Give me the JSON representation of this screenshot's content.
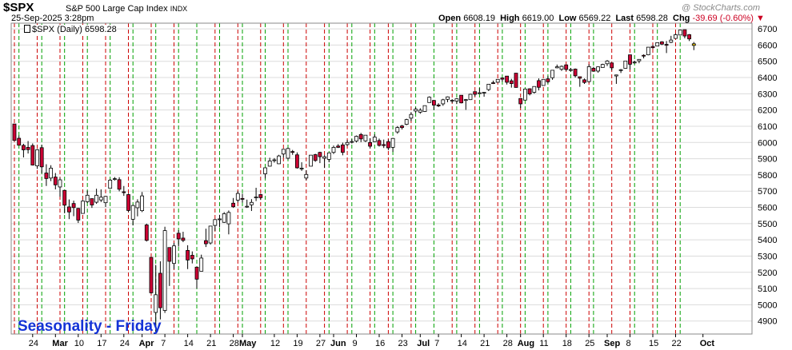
{
  "header": {
    "symbol": "$SPX",
    "index_name": "S&P 500 Large Cap Index",
    "index_suffix": "INDX",
    "datetime": "25-Sep-2025 3:28pm",
    "watermark": "@ StockCharts.com",
    "open_label": "Open",
    "open": "6608.19",
    "high_label": "High",
    "high": "6619.00",
    "low_label": "Low",
    "low": "6569.22",
    "last_label": "Last",
    "last": "6598.28",
    "chg_label": "Chg",
    "chg": "-39.69 (-0.60%)",
    "chg_marker": "▼"
  },
  "legend": {
    "text": "$SPX (Daily) 6598.28"
  },
  "annotation": {
    "text": "Seasonality - Friday",
    "color": "#1433d6"
  },
  "colors": {
    "up_body": "#ffffff",
    "down_body": "#cc0033",
    "candle_outline": "#000000",
    "friday_line": "#cc0000",
    "monday_line": "#00a000",
    "today_highlight": "#ffd700"
  },
  "chart_data": {
    "type": "candlestick",
    "title": "$SPX (Daily)",
    "y_ticks": [
      4900,
      5000,
      5100,
      5200,
      5300,
      5400,
      5500,
      5600,
      5700,
      5800,
      5900,
      6000,
      6100,
      6200,
      6300,
      6400,
      6500,
      6600,
      6700
    ],
    "ylim": [
      4820,
      6735
    ],
    "x_tick_labels": [
      "24",
      "Mar",
      "10",
      "17",
      "24",
      "Apr",
      "7",
      "14",
      "21",
      "28",
      "May",
      "12",
      "19",
      "27",
      "Jun",
      "9",
      "16",
      "23",
      "Jul",
      "7",
      "14",
      "21",
      "28",
      "Aug",
      "11",
      "18",
      "25",
      "Sep",
      "8",
      "15",
      "22",
      "Oct"
    ],
    "x_tick_bold": [
      "Mar",
      "Apr",
      "May",
      "Jun",
      "Jul",
      "Aug",
      "Sep",
      "Oct"
    ],
    "x_tick_positions": [
      4,
      9,
      14,
      19,
      24,
      28,
      33,
      38,
      43,
      48,
      50,
      57,
      62,
      67,
      70,
      75,
      80,
      85,
      89,
      93,
      98,
      103,
      108,
      111,
      116,
      121,
      126,
      130,
      135,
      140,
      145,
      151
    ],
    "grid": true,
    "vertical_markers": "red dashed line on each Friday, green dashed line on each Monday",
    "candles": [
      [
        "2025-02-21",
        6114,
        6114,
        6008,
        6013
      ],
      [
        "2025-02-24",
        6026,
        6043,
        5986,
        5983
      ],
      [
        "2025-02-25",
        5982,
        5992,
        5908,
        5955
      ],
      [
        "2025-02-26",
        5970,
        6009,
        5932,
        5956
      ],
      [
        "2025-02-27",
        5981,
        5994,
        5858,
        5861
      ],
      [
        "2025-02-28",
        5856,
        5959,
        5837,
        5955
      ],
      [
        "2025-03-03",
        5968,
        5986,
        5810,
        5850
      ],
      [
        "2025-03-04",
        5812,
        5866,
        5732,
        5778
      ],
      [
        "2025-03-05",
        5781,
        5860,
        5762,
        5842
      ],
      [
        "2025-03-06",
        5787,
        5812,
        5711,
        5739
      ],
      [
        "2025-03-07",
        5726,
        5783,
        5666,
        5770
      ],
      [
        "2025-03-10",
        5705,
        5705,
        5564,
        5614
      ],
      [
        "2025-03-11",
        5603,
        5649,
        5528,
        5572
      ],
      [
        "2025-03-12",
        5624,
        5642,
        5546,
        5599
      ],
      [
        "2025-03-13",
        5594,
        5597,
        5504,
        5522
      ],
      [
        "2025-03-14",
        5563,
        5645,
        5563,
        5639
      ],
      [
        "2025-03-17",
        5635,
        5703,
        5628,
        5675
      ],
      [
        "2025-03-18",
        5654,
        5654,
        5597,
        5615
      ],
      [
        "2025-03-19",
        5632,
        5715,
        5622,
        5675
      ],
      [
        "2025-03-20",
        5646,
        5711,
        5633,
        5663
      ],
      [
        "2025-03-21",
        5629,
        5670,
        5603,
        5668
      ],
      [
        "2025-03-24",
        5718,
        5775,
        5718,
        5768
      ],
      [
        "2025-03-25",
        5775,
        5787,
        5765,
        5777
      ],
      [
        "2025-03-26",
        5771,
        5786,
        5699,
        5712
      ],
      [
        "2025-03-27",
        5696,
        5732,
        5671,
        5693
      ],
      [
        "2025-03-28",
        5679,
        5685,
        5572,
        5581
      ],
      [
        "2025-03-31",
        5527,
        5616,
        5489,
        5612
      ],
      [
        "2025-04-01",
        5598,
        5650,
        5545,
        5633
      ],
      [
        "2025-04-02",
        5580,
        5695,
        5571,
        5671
      ],
      [
        "2025-04-03",
        5492,
        5500,
        5390,
        5397
      ],
      [
        "2025-04-04",
        5292,
        5292,
        5070,
        5074
      ],
      [
        "2025-04-07",
        4953,
        5246,
        4835,
        5062
      ],
      [
        "2025-04-08",
        5194,
        5268,
        4910,
        4982
      ],
      [
        "2025-04-09",
        4965,
        5481,
        4950,
        5457
      ],
      [
        "2025-04-10",
        5353,
        5353,
        5116,
        5268
      ],
      [
        "2025-04-11",
        5255,
        5381,
        5220,
        5363
      ],
      [
        "2025-04-14",
        5441,
        5460,
        5359,
        5406
      ],
      [
        "2025-04-15",
        5411,
        5450,
        5386,
        5397
      ],
      [
        "2025-04-16",
        5335,
        5367,
        5220,
        5276
      ],
      [
        "2025-04-17",
        5305,
        5329,
        5255,
        5283
      ],
      [
        "2025-04-21",
        5232,
        5232,
        5101,
        5158
      ],
      [
        "2025-04-22",
        5207,
        5309,
        5207,
        5288
      ],
      [
        "2025-04-23",
        5395,
        5469,
        5356,
        5376
      ],
      [
        "2025-04-24",
        5381,
        5485,
        5371,
        5485
      ],
      [
        "2025-04-25",
        5489,
        5528,
        5455,
        5525
      ],
      [
        "2025-04-28",
        5529,
        5554,
        5478,
        5529
      ],
      [
        "2025-04-29",
        5508,
        5571,
        5505,
        5561
      ],
      [
        "2025-04-30",
        5499,
        5581,
        5434,
        5569
      ],
      [
        "2025-05-01",
        5626,
        5658,
        5597,
        5604
      ],
      [
        "2025-05-02",
        5645,
        5700,
        5631,
        5686
      ],
      [
        "2025-05-05",
        5655,
        5684,
        5630,
        5650
      ],
      [
        "2025-05-06",
        5605,
        5648,
        5597,
        5607
      ],
      [
        "2025-05-07",
        5616,
        5651,
        5578,
        5631
      ],
      [
        "2025-05-08",
        5663,
        5721,
        5639,
        5664
      ],
      [
        "2025-05-09",
        5679,
        5684,
        5646,
        5660
      ],
      [
        "2025-05-12",
        5807,
        5844,
        5778,
        5844
      ],
      [
        "2025-05-13",
        5854,
        5906,
        5852,
        5886
      ],
      [
        "2025-05-14",
        5890,
        5904,
        5876,
        5893
      ],
      [
        "2025-05-15",
        5869,
        5924,
        5867,
        5917
      ],
      [
        "2025-05-16",
        5929,
        5958,
        5907,
        5958
      ],
      [
        "2025-05-19",
        5903,
        5968,
        5895,
        5963
      ],
      [
        "2025-05-20",
        5944,
        5954,
        5924,
        5941
      ],
      [
        "2025-05-21",
        5924,
        5939,
        5839,
        5844
      ],
      [
        "2025-05-22",
        5842,
        5878,
        5825,
        5842
      ],
      [
        "2025-05-23",
        5781,
        5829,
        5767,
        5803
      ],
      [
        "2025-05-27",
        5854,
        5922,
        5854,
        5922
      ],
      [
        "2025-05-28",
        5925,
        5930,
        5881,
        5889
      ],
      [
        "2025-05-29",
        5939,
        5943,
        5873,
        5912
      ],
      [
        "2025-05-30",
        5903,
        5922,
        5843,
        5912
      ],
      [
        "2025-06-02",
        5896,
        5937,
        5878,
        5936
      ],
      [
        "2025-06-03",
        5939,
        5981,
        5929,
        5970
      ],
      [
        "2025-06-04",
        5978,
        5990,
        5966,
        5970
      ],
      [
        "2025-06-05",
        5985,
        5999,
        5921,
        5939
      ],
      [
        "2025-06-06",
        5987,
        6016,
        5978,
        6000
      ],
      [
        "2025-06-09",
        6004,
        6021,
        5994,
        6006
      ],
      [
        "2025-06-10",
        6009,
        6043,
        6000,
        6038
      ],
      [
        "2025-06-11",
        6049,
        6059,
        6002,
        6022
      ],
      [
        "2025-06-12",
        6010,
        6045,
        6003,
        6045
      ],
      [
        "2025-06-13",
        6000,
        6026,
        5964,
        5977
      ],
      [
        "2025-06-16",
        6005,
        6050,
        6004,
        6033
      ],
      [
        "2025-06-17",
        6012,
        6024,
        5975,
        5982
      ],
      [
        "2025-06-18",
        5987,
        6018,
        5966,
        5981
      ],
      [
        "2025-06-20",
        6005,
        6019,
        5953,
        5967
      ],
      [
        "2025-06-23",
        5970,
        6028,
        5943,
        6025
      ],
      [
        "2025-06-24",
        6065,
        6101,
        6054,
        6092
      ],
      [
        "2025-06-25",
        6102,
        6108,
        6080,
        6092
      ],
      [
        "2025-06-26",
        6112,
        6146,
        6107,
        6141
      ],
      [
        "2025-06-27",
        6150,
        6187,
        6132,
        6173
      ],
      [
        "2025-06-30",
        6194,
        6216,
        6182,
        6205
      ],
      [
        "2025-07-01",
        6187,
        6211,
        6177,
        6199
      ],
      [
        "2025-07-02",
        6191,
        6227,
        6188,
        6227
      ],
      [
        "2025-07-03",
        6246,
        6284,
        6246,
        6279
      ],
      [
        "2025-07-07",
        6259,
        6262,
        6201,
        6230
      ],
      [
        "2025-07-08",
        6231,
        6242,
        6218,
        6225
      ],
      [
        "2025-07-09",
        6238,
        6269,
        6226,
        6263
      ],
      [
        "2025-07-10",
        6266,
        6284,
        6248,
        6281
      ],
      [
        "2025-07-11",
        6256,
        6267,
        6243,
        6260
      ],
      [
        "2025-07-14",
        6255,
        6273,
        6237,
        6269
      ],
      [
        "2025-07-15",
        6291,
        6291,
        6241,
        6244
      ],
      [
        "2025-07-16",
        6261,
        6268,
        6201,
        6264
      ],
      [
        "2025-07-17",
        6264,
        6300,
        6262,
        6297
      ],
      [
        "2025-07-18",
        6313,
        6315,
        6285,
        6297
      ],
      [
        "2025-07-21",
        6305,
        6336,
        6303,
        6306
      ],
      [
        "2025-07-22",
        6307,
        6310,
        6282,
        6309
      ],
      [
        "2025-07-23",
        6326,
        6360,
        6317,
        6359
      ],
      [
        "2025-07-24",
        6368,
        6381,
        6360,
        6363
      ],
      [
        "2025-07-25",
        6371,
        6389,
        6368,
        6389
      ],
      [
        "2025-07-28",
        6397,
        6401,
        6375,
        6390
      ],
      [
        "2025-07-29",
        6409,
        6410,
        6357,
        6371
      ],
      [
        "2025-07-30",
        6380,
        6392,
        6338,
        6363
      ],
      [
        "2025-07-31",
        6427,
        6427,
        6347,
        6339
      ],
      [
        "2025-08-01",
        6271,
        6271,
        6212,
        6238
      ],
      [
        "2025-08-04",
        6261,
        6330,
        6261,
        6329
      ],
      [
        "2025-08-05",
        6331,
        6334,
        6290,
        6299
      ],
      [
        "2025-08-06",
        6309,
        6346,
        6301,
        6345
      ],
      [
        "2025-08-07",
        6381,
        6395,
        6321,
        6340
      ],
      [
        "2025-08-08",
        6351,
        6390,
        6351,
        6389
      ],
      [
        "2025-08-11",
        6392,
        6409,
        6364,
        6374
      ],
      [
        "2025-08-12",
        6399,
        6446,
        6386,
        6445
      ],
      [
        "2025-08-13",
        6460,
        6480,
        6457,
        6466
      ],
      [
        "2025-08-14",
        6451,
        6474,
        6441,
        6469
      ],
      [
        "2025-08-15",
        6478,
        6481,
        6441,
        6450
      ],
      [
        "2025-08-18",
        6445,
        6459,
        6437,
        6449
      ],
      [
        "2025-08-19",
        6452,
        6456,
        6400,
        6411
      ],
      [
        "2025-08-20",
        6405,
        6405,
        6343,
        6396
      ],
      [
        "2025-08-21",
        6386,
        6394,
        6361,
        6370
      ],
      [
        "2025-08-22",
        6375,
        6482,
        6370,
        6467
      ],
      [
        "2025-08-25",
        6457,
        6466,
        6438,
        6439
      ],
      [
        "2025-08-26",
        6440,
        6468,
        6430,
        6466
      ],
      [
        "2025-08-27",
        6462,
        6485,
        6462,
        6481
      ],
      [
        "2025-08-28",
        6485,
        6508,
        6471,
        6502
      ],
      [
        "2025-08-29",
        6490,
        6491,
        6444,
        6460
      ],
      [
        "2025-09-02",
        6410,
        6418,
        6361,
        6416
      ],
      [
        "2025-09-03",
        6445,
        6453,
        6428,
        6448
      ],
      [
        "2025-09-04",
        6457,
        6503,
        6455,
        6502
      ],
      [
        "2025-09-05",
        6540,
        6533,
        6450,
        6482
      ],
      [
        "2025-09-08",
        6494,
        6504,
        6485,
        6495
      ],
      [
        "2025-09-09",
        6503,
        6513,
        6488,
        6512
      ],
      [
        "2025-09-10",
        6537,
        6543,
        6518,
        6532
      ],
      [
        "2025-09-11",
        6540,
        6586,
        6537,
        6587
      ],
      [
        "2025-09-12",
        6591,
        6600,
        6578,
        6584
      ],
      [
        "2025-09-15",
        6594,
        6616,
        6594,
        6615
      ],
      [
        "2025-09-16",
        6620,
        6624,
        6600,
        6606
      ],
      [
        "2025-09-17",
        6604,
        6625,
        6551,
        6600
      ],
      [
        "2025-09-18",
        6617,
        6657,
        6612,
        6631
      ],
      [
        "2025-09-19",
        6641,
        6671,
        6640,
        6664
      ],
      [
        "2025-09-22",
        6662,
        6695,
        6660,
        6693
      ],
      [
        "2025-09-23",
        6695,
        6692,
        6642,
        6656
      ],
      [
        "2025-09-24",
        6664,
        6668,
        6625,
        6638
      ],
      [
        "2025-09-25",
        6608,
        6619,
        6569,
        6598
      ]
    ]
  }
}
